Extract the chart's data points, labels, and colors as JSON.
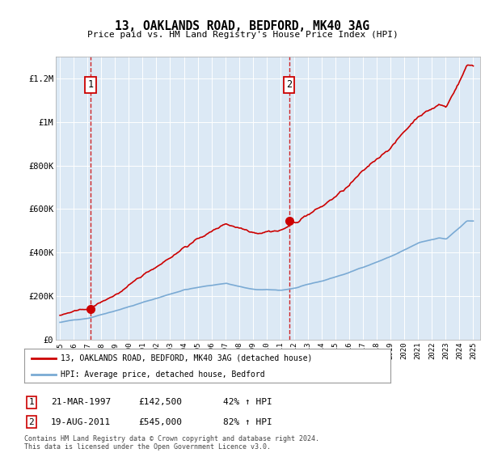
{
  "title": "13, OAKLANDS ROAD, BEDFORD, MK40 3AG",
  "subtitle": "Price paid vs. HM Land Registry's House Price Index (HPI)",
  "plot_bg_color": "#dce9f5",
  "hpi_color": "#7aaad4",
  "price_color": "#cc0000",
  "ylim": [
    0,
    1300000
  ],
  "yticks": [
    0,
    200000,
    400000,
    600000,
    800000,
    1000000,
    1200000
  ],
  "ytick_labels": [
    "£0",
    "£200K",
    "£400K",
    "£600K",
    "£800K",
    "£1M",
    "£1.2M"
  ],
  "t1_date": 1997.22,
  "t1_price": 142500,
  "t2_date": 2011.63,
  "t2_price": 545000,
  "legend_line1": "13, OAKLANDS ROAD, BEDFORD, MK40 3AG (detached house)",
  "legend_line2": "HPI: Average price, detached house, Bedford",
  "note1_label": "1",
  "note1_date": "21-MAR-1997",
  "note1_price": "£142,500",
  "note1_pct": "42% ↑ HPI",
  "note2_label": "2",
  "note2_date": "19-AUG-2011",
  "note2_price": "£545,000",
  "note2_pct": "82% ↑ HPI",
  "footer": "Contains HM Land Registry data © Crown copyright and database right 2024.\nThis data is licensed under the Open Government Licence v3.0."
}
